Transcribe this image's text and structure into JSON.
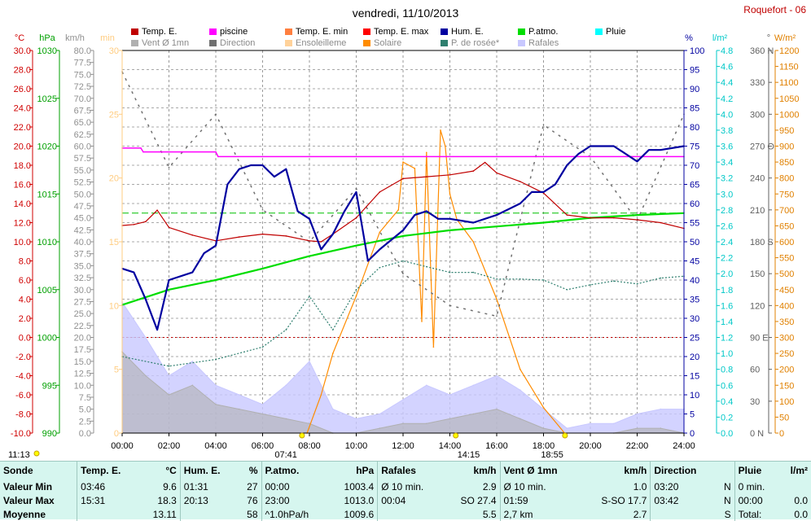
{
  "page": {
    "title": "vendredi, 11/10/2013",
    "station": "Roquefort - 06"
  },
  "legend": [
    {
      "label": "Temp. E.",
      "color": "#c00000"
    },
    {
      "label": "piscine",
      "color": "#ff00ff"
    },
    {
      "label": "Temp. E. min",
      "color": "#ff7f3f"
    },
    {
      "label": "Temp. E. max",
      "color": "#ff0000"
    },
    {
      "label": "Hum. E.",
      "color": "#0000a0"
    },
    {
      "label": "P.atmo.",
      "color": "#00dd00"
    },
    {
      "label": "Pluie",
      "color": "#00ffff"
    },
    {
      "label": "Vent Ø 1mn",
      "color": "#b0b0b0"
    },
    {
      "label": "Direction",
      "color": "#707070"
    },
    {
      "label": "Ensoleilleme",
      "color": "#ffd29a"
    },
    {
      "label": "Solaire",
      "color": "#ff8c00"
    },
    {
      "label": "P. de rosée*",
      "color": "#2f7f6f"
    },
    {
      "label": "Rafales",
      "color": "#c8c8ff"
    }
  ],
  "axes": {
    "temp": {
      "unit": "°C",
      "color": "#d00000",
      "ticks": [
        "30.0",
        "28.0",
        "26.0",
        "24.0",
        "22.0",
        "20.0",
        "18.0",
        "16.0",
        "14.0",
        "12.0",
        "10.0",
        "8.0",
        "6.0",
        "4.0",
        "2.0",
        "0.0",
        "-2.0",
        "-4.0",
        "-6.0",
        "-8.0",
        "-10.0"
      ]
    },
    "press": {
      "unit": "hPa",
      "color": "#00a000",
      "ticks": [
        "1030",
        "1025",
        "1020",
        "1015",
        "1010",
        "1005",
        "1000",
        "995",
        "990"
      ]
    },
    "wind": {
      "unit": "km/h",
      "color": "#909090",
      "ticks": [
        "80.0",
        "77.5",
        "75.0",
        "72.5",
        "70.0",
        "67.5",
        "65.0",
        "62.5",
        "60.0",
        "57.5",
        "55.0",
        "52.5",
        "50.0",
        "47.5",
        "45.0",
        "42.5",
        "40.0",
        "37.5",
        "35.0",
        "32.5",
        "30.0",
        "27.5",
        "25.0",
        "22.5",
        "20.0",
        "17.5",
        "15.0",
        "12.5",
        "10.0",
        "7.5",
        "5.0",
        "2.5",
        "0.0"
      ]
    },
    "sunmin": {
      "unit": "min",
      "color": "#ffcc80",
      "ticks": [
        "30",
        "25",
        "20",
        "15",
        "10",
        "5",
        "0"
      ]
    },
    "hum": {
      "unit": "%",
      "color": "#0000a0",
      "ticks": [
        "100",
        "95",
        "90",
        "85",
        "80",
        "75",
        "70",
        "65",
        "60",
        "55",
        "50",
        "45",
        "40",
        "35",
        "30",
        "25",
        "20",
        "15",
        "10",
        "5",
        "0"
      ]
    },
    "rain": {
      "unit": "l/m²",
      "color": "#00c8c8",
      "ticks": [
        "4.8",
        "4.6",
        "4.4",
        "4.2",
        "4.0",
        "3.8",
        "3.6",
        "3.4",
        "3.2",
        "3.0",
        "2.8",
        "2.6",
        "2.4",
        "2.2",
        "2.0",
        "1.8",
        "1.6",
        "1.4",
        "1.2",
        "1.0",
        "0.8",
        "0.6",
        "0.4",
        "0.2",
        "0.0"
      ]
    },
    "dir": {
      "unit": "°",
      "color": "#606060",
      "ticks": [
        "360 N",
        "330",
        "300",
        "270 O",
        "240",
        "210",
        "180 S",
        "150",
        "120",
        "90 E",
        "60",
        "30",
        "0 N"
      ]
    },
    "solar": {
      "unit": "W/m²",
      "color": "#e08000",
      "ticks": [
        "1200",
        "1150",
        "1100",
        "1050",
        "1000",
        "950",
        "900",
        "850",
        "800",
        "750",
        "700",
        "650",
        "600",
        "550",
        "500",
        "450",
        "400",
        "350",
        "300",
        "250",
        "200",
        "150",
        "100",
        "50",
        "0"
      ]
    },
    "time": {
      "ticks": [
        "00:00",
        "02:00",
        "04:00",
        "06:00",
        "08:00",
        "10:00",
        "12:00",
        "14:00",
        "16:00",
        "18:00",
        "20:00",
        "22:00",
        "24:00"
      ]
    }
  },
  "time_marks": {
    "left": "11:13",
    "sunrise": "07:41",
    "noon": "14:15",
    "sunset": "18:55"
  },
  "chart_data": {
    "type": "line",
    "title": "vendredi, 11/10/2013",
    "x_range": [
      "00:00",
      "24:00"
    ],
    "series": [
      {
        "name": "Temp. E.",
        "axis": "°C",
        "x": [
          0,
          0.5,
          1,
          1.5,
          2,
          3,
          4,
          5,
          6,
          7,
          8,
          8.5,
          9,
          10,
          11,
          12,
          13,
          14,
          15,
          15.5,
          16,
          17,
          18,
          19,
          20,
          21,
          22,
          23,
          24
        ],
        "y": [
          11.7,
          11.8,
          12.1,
          13.3,
          11.5,
          10.7,
          10.1,
          10.5,
          10.8,
          10.6,
          10.1,
          10.0,
          10.8,
          12.5,
          15.2,
          16.6,
          16.8,
          17.0,
          17.4,
          18.3,
          17.2,
          16.3,
          15.1,
          12.8,
          12.5,
          12.5,
          12.3,
          12.0,
          11.4
        ]
      },
      {
        "name": "piscine",
        "axis": "°C",
        "x": [
          0,
          0.8,
          0.9,
          4,
          4.1,
          24
        ],
        "y": [
          19.8,
          19.8,
          19.4,
          19.4,
          18.9,
          18.9
        ]
      },
      {
        "name": "Hum. E.",
        "axis": "%",
        "x": [
          0,
          0.5,
          1,
          1.5,
          2,
          3,
          3.5,
          4,
          4.5,
          5,
          5.5,
          6,
          6.5,
          7,
          7.5,
          8,
          8.5,
          9,
          9.5,
          10,
          10.5,
          11,
          12,
          12.5,
          13,
          13.5,
          14,
          15,
          16,
          17,
          17.5,
          18,
          18.5,
          19,
          19.5,
          20,
          21,
          22,
          22.5,
          23,
          24
        ],
        "y": [
          43,
          42,
          35,
          27,
          40,
          42,
          47,
          49,
          65,
          69,
          70,
          70,
          67,
          69,
          58,
          56,
          48,
          52,
          58,
          63,
          45,
          48,
          53,
          57,
          58,
          56,
          56,
          55,
          57,
          60,
          63,
          63,
          65,
          70,
          73,
          75,
          75,
          71,
          74,
          74,
          75
        ]
      },
      {
        "name": "P.atmo.",
        "axis": "hPa",
        "x": [
          0,
          2,
          4,
          6,
          8,
          10,
          12,
          14,
          16,
          18,
          20,
          22,
          24
        ],
        "y": [
          1003.4,
          1005.0,
          1006.0,
          1007.2,
          1008.5,
          1009.6,
          1010.6,
          1011.2,
          1011.6,
          1012.0,
          1012.5,
          1012.8,
          1013.0
        ]
      },
      {
        "name": "P. de rosée*",
        "axis": "°C",
        "x": [
          0,
          2,
          4,
          6,
          7,
          8,
          9,
          10,
          11,
          12,
          13,
          14,
          15,
          16,
          17,
          18,
          19,
          20,
          21,
          22,
          23,
          24
        ],
        "y": [
          -2.0,
          -3.0,
          -2.3,
          -1.0,
          0.8,
          4.3,
          0.8,
          5.0,
          7.3,
          8.0,
          7.4,
          6.8,
          6.8,
          6.1,
          6.1,
          6.0,
          5.0,
          5.5,
          5.9,
          5.6,
          6.2,
          6.4
        ]
      },
      {
        "name": "Solaire",
        "axis": "W/m²",
        "x": [
          7.9,
          8.5,
          9,
          10,
          11,
          11.8,
          12,
          12.5,
          12.8,
          13,
          13.3,
          13.6,
          13.8,
          14,
          14.3,
          15,
          16,
          17,
          18,
          18.9
        ],
        "y": [
          0,
          120,
          250,
          430,
          630,
          700,
          850,
          830,
          350,
          880,
          270,
          950,
          900,
          750,
          670,
          600,
          420,
          200,
          80,
          0
        ]
      },
      {
        "name": "Vent Ø 1mn",
        "axis": "km/h",
        "x": [
          0,
          1,
          2,
          3,
          4,
          5,
          6,
          7,
          8,
          9,
          10,
          11,
          12,
          13,
          14,
          15,
          16,
          17,
          18,
          19,
          20,
          21,
          22,
          23,
          24
        ],
        "y": [
          17,
          12,
          8,
          10,
          6,
          5,
          4,
          3,
          2,
          0,
          0,
          1,
          2,
          2,
          3,
          4,
          5,
          3,
          1,
          0,
          0,
          0,
          1,
          1,
          0
        ]
      },
      {
        "name": "Rafales",
        "axis": "km/h",
        "x": [
          0,
          1,
          2,
          3,
          4,
          5,
          6,
          7,
          8,
          9,
          10,
          11,
          12,
          13,
          14,
          15,
          16,
          17,
          18,
          19,
          20,
          21,
          22,
          23,
          24
        ],
        "y": [
          27.4,
          20,
          12,
          15,
          10,
          8,
          6,
          10,
          15,
          5,
          3,
          4,
          7,
          10,
          8,
          10,
          12,
          9,
          5,
          1,
          2,
          2,
          4,
          5,
          5
        ]
      },
      {
        "name": "Direction",
        "axis": "°",
        "x": [
          0,
          2,
          4,
          6,
          8,
          10,
          12,
          14,
          16,
          18,
          20,
          22,
          24
        ],
        "y": [
          340,
          250,
          300,
          210,
          180,
          230,
          150,
          120,
          110,
          290,
          260,
          200,
          300
        ]
      }
    ]
  },
  "table": {
    "headers": [
      {
        "name": "Sonde",
        "unit": ""
      },
      {
        "name": "Temp. E.",
        "unit": "°C"
      },
      {
        "name": "Hum. E.",
        "unit": "%"
      },
      {
        "name": "P.atmo.",
        "unit": "hPa"
      },
      {
        "name": "Rafales",
        "unit": "km/h"
      },
      {
        "name": "Vent Ø 1mn",
        "unit": "km/h"
      },
      {
        "name": "Direction",
        "unit": ""
      },
      {
        "name": "Pluie",
        "unit": "l/m²"
      }
    ],
    "rows": [
      {
        "label": "Valeur Min",
        "cells": [
          [
            "03:46",
            "9.6"
          ],
          [
            "01:31",
            "27"
          ],
          [
            "00:00",
            "1003.4"
          ],
          [
            "Ø 10 min.",
            "2.9"
          ],
          [
            "Ø 10 min.",
            "1.0"
          ],
          [
            "03:20",
            "N"
          ],
          [
            "0 min.",
            ""
          ]
        ]
      },
      {
        "label": "Valeur Max",
        "cells": [
          [
            "15:31",
            "18.3"
          ],
          [
            "20:13",
            "76"
          ],
          [
            "23:00",
            "1013.0"
          ],
          [
            "00:04",
            "SO 27.4"
          ],
          [
            "01:59",
            "S-SO 17.7"
          ],
          [
            "03:42",
            "N"
          ],
          [
            "00:00",
            "0.0"
          ]
        ]
      },
      {
        "label": "Moyenne",
        "cells": [
          [
            "",
            "13.11"
          ],
          [
            "",
            "58"
          ],
          [
            "^1.0hPa/h",
            "1009.6"
          ],
          [
            "",
            "5.5"
          ],
          [
            "2,7 km",
            "2.7"
          ],
          [
            "",
            "S"
          ],
          [
            "Total:",
            "0.0"
          ]
        ]
      }
    ]
  }
}
